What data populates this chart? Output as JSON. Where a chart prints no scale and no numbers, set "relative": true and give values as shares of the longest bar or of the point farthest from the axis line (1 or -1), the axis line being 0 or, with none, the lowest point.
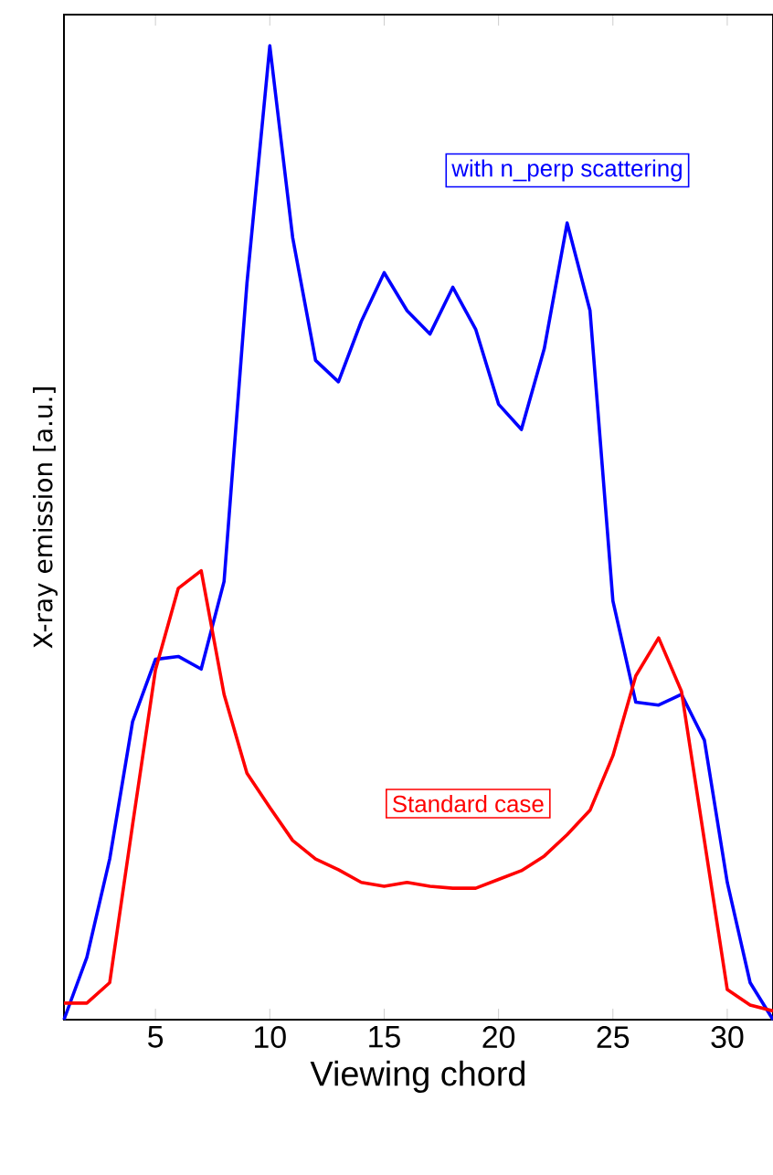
{
  "chart_data": {
    "type": "line",
    "relative": true,
    "xlabel": "Viewing chord",
    "ylabel": "X-ray emission [a.u.]",
    "x": [
      1,
      2,
      3,
      4,
      5,
      6,
      7,
      8,
      9,
      10,
      11,
      12,
      13,
      14,
      15,
      16,
      17,
      18,
      19,
      20,
      21,
      22,
      23,
      24,
      25,
      26,
      27,
      28,
      29,
      30,
      31,
      32
    ],
    "xlim": [
      1,
      32
    ],
    "xticks": [
      5,
      10,
      15,
      20,
      25,
      30
    ],
    "legend": false,
    "marker": "none",
    "line_style": "solid",
    "series": [
      {
        "name": "with n_perp scattering",
        "color": "#0000ff",
        "values": [
          0,
          0.064,
          0.165,
          0.306,
          0.37,
          0.373,
          0.36,
          0.45,
          0.756,
          1,
          0.803,
          0.677,
          0.655,
          0.717,
          0.767,
          0.728,
          0.704,
          0.752,
          0.709,
          0.632,
          0.606,
          0.689,
          0.818,
          0.728,
          0.43,
          0.326,
          0.323,
          0.334,
          0.287,
          0.141,
          0.038,
          0
        ]
      },
      {
        "name": "Standard case",
        "color": "#ff0000",
        "values": [
          0.017,
          0.017,
          0.038,
          0.2,
          0.359,
          0.443,
          0.461,
          0.334,
          0.253,
          0.218,
          0.184,
          0.165,
          0.154,
          0.141,
          0.137,
          0.141,
          0.137,
          0.135,
          0.135,
          0.144,
          0.153,
          0.168,
          0.19,
          0.215,
          0.271,
          0.353,
          0.392,
          0.337,
          0.184,
          0.031,
          0.015,
          0.009
        ]
      }
    ]
  }
}
